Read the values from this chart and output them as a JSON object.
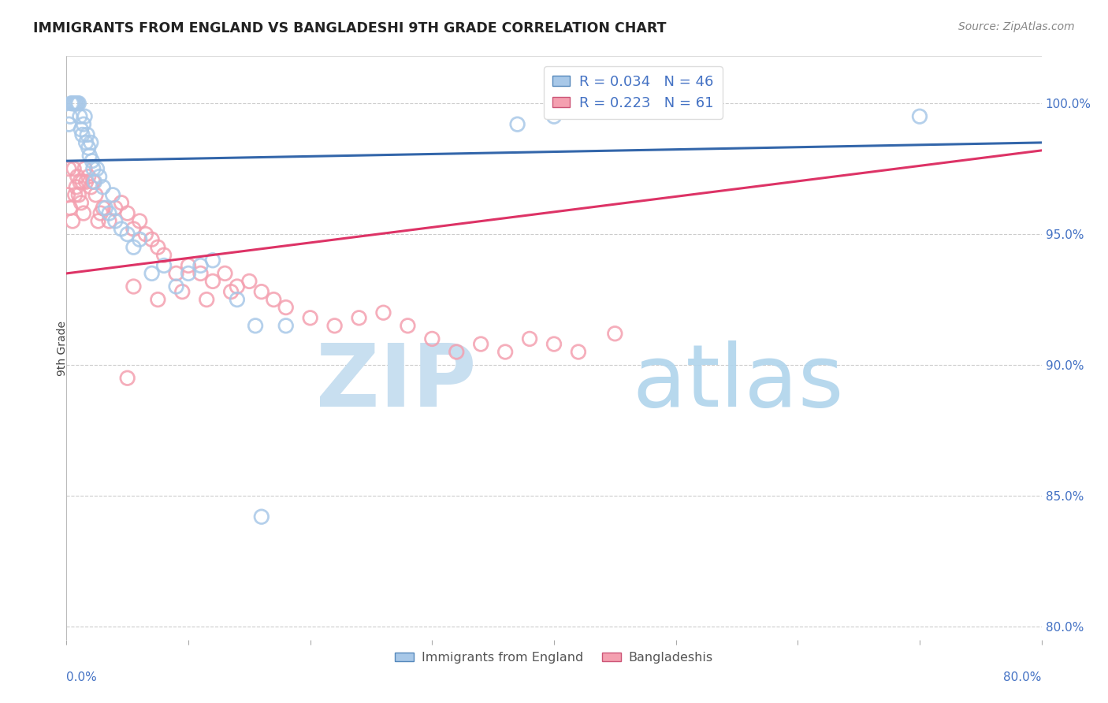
{
  "title": "IMMIGRANTS FROM ENGLAND VS BANGLADESHI 9TH GRADE CORRELATION CHART",
  "source": "Source: ZipAtlas.com",
  "ylabel": "9th Grade",
  "y_ticks": [
    80.0,
    85.0,
    90.0,
    95.0,
    100.0
  ],
  "x_ticks_minor": [
    0.0,
    10.0,
    20.0,
    30.0,
    40.0,
    50.0,
    60.0,
    70.0,
    80.0
  ],
  "xlim": [
    0.0,
    80.0
  ],
  "ylim": [
    79.5,
    101.8
  ],
  "blue_R": 0.034,
  "blue_N": 46,
  "pink_R": 0.223,
  "pink_N": 61,
  "blue_color": "#a8c8e8",
  "pink_color": "#f4a0b0",
  "blue_edge_color": "#5588bb",
  "pink_edge_color": "#cc5577",
  "blue_line_color": "#3366aa",
  "pink_line_color": "#dd3366",
  "watermark_zip_color": "#c8dff0",
  "watermark_atlas_color": "#b0d4ec",
  "blue_scatter_x": [
    0.2,
    0.3,
    0.4,
    0.5,
    0.6,
    0.7,
    0.8,
    0.9,
    1.0,
    1.1,
    1.2,
    1.3,
    1.4,
    1.5,
    1.6,
    1.7,
    1.8,
    1.9,
    2.0,
    2.1,
    2.2,
    2.3,
    2.5,
    2.7,
    3.0,
    3.2,
    3.5,
    3.8,
    4.0,
    4.5,
    5.0,
    5.5,
    6.0,
    7.0,
    8.0,
    9.0,
    10.0,
    11.0,
    12.0,
    14.0,
    15.5,
    18.0,
    37.0,
    40.0,
    70.0,
    16.0
  ],
  "blue_scatter_y": [
    99.2,
    99.5,
    100.0,
    100.0,
    100.0,
    100.0,
    100.0,
    100.0,
    100.0,
    99.5,
    99.0,
    98.8,
    99.2,
    99.5,
    98.5,
    98.8,
    98.3,
    98.0,
    98.5,
    97.8,
    97.5,
    97.0,
    97.5,
    97.2,
    96.8,
    96.0,
    95.8,
    96.5,
    95.5,
    95.2,
    95.0,
    94.5,
    94.8,
    93.5,
    93.8,
    93.0,
    93.5,
    93.8,
    94.0,
    92.5,
    91.5,
    91.5,
    99.2,
    99.5,
    99.5,
    84.2
  ],
  "pink_scatter_x": [
    0.1,
    0.2,
    0.3,
    0.5,
    0.6,
    0.7,
    0.8,
    0.9,
    1.0,
    1.1,
    1.2,
    1.3,
    1.4,
    1.5,
    1.6,
    1.8,
    2.0,
    2.2,
    2.4,
    2.6,
    2.8,
    3.0,
    3.5,
    4.0,
    4.5,
    5.0,
    5.5,
    6.0,
    6.5,
    7.0,
    7.5,
    8.0,
    9.0,
    10.0,
    11.0,
    12.0,
    13.0,
    14.0,
    15.0,
    16.0,
    17.0,
    18.0,
    20.0,
    22.0,
    24.0,
    26.0,
    28.0,
    30.0,
    32.0,
    34.0,
    36.0,
    38.0,
    40.0,
    42.0,
    45.0,
    5.5,
    7.5,
    9.5,
    11.5,
    13.5,
    5.0
  ],
  "pink_scatter_y": [
    96.5,
    97.5,
    96.0,
    95.5,
    97.5,
    96.5,
    96.8,
    97.2,
    96.5,
    97.0,
    96.2,
    97.0,
    95.8,
    97.5,
    97.0,
    97.2,
    96.8,
    97.0,
    96.5,
    95.5,
    95.8,
    96.0,
    95.5,
    96.0,
    96.2,
    95.8,
    95.2,
    95.5,
    95.0,
    94.8,
    94.5,
    94.2,
    93.5,
    93.8,
    93.5,
    93.2,
    93.5,
    93.0,
    93.2,
    92.8,
    92.5,
    92.2,
    91.8,
    91.5,
    91.8,
    92.0,
    91.5,
    91.0,
    90.5,
    90.8,
    90.5,
    91.0,
    90.8,
    90.5,
    91.2,
    93.0,
    92.5,
    92.8,
    92.5,
    92.8,
    89.5
  ],
  "blue_trendline_y0": 97.8,
  "blue_trendline_y1": 98.5,
  "pink_trendline_y0": 93.5,
  "pink_trendline_y1": 98.2
}
